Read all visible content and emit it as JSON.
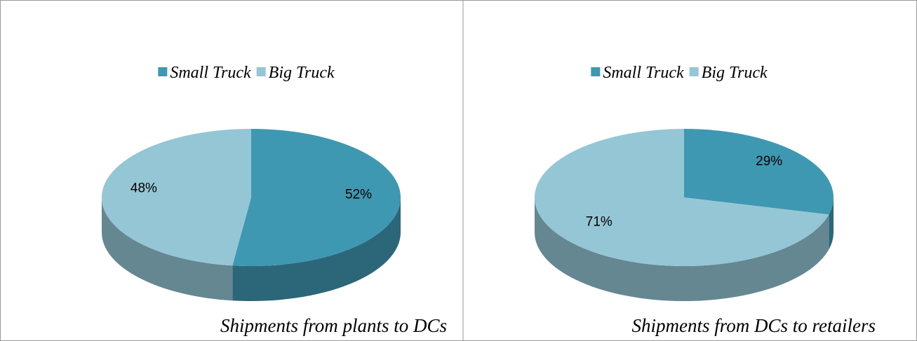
{
  "chart_data": [
    {
      "type": "pie",
      "title": "Shipments from plants to DCs",
      "categories": [
        "Small Truck",
        "Big Truck"
      ],
      "values": [
        52,
        48
      ],
      "value_labels": [
        "52%",
        "48%"
      ],
      "colors": [
        "#3f98b2",
        "#94c6d6"
      ],
      "legend": "top"
    },
    {
      "type": "pie",
      "title": "Shipments from DCs to retailers",
      "categories": [
        "Small Truck",
        "Big Truck"
      ],
      "values": [
        29,
        71
      ],
      "value_labels": [
        "29%",
        "71%"
      ],
      "colors": [
        "#3f98b2",
        "#94c6d6"
      ],
      "legend": "top"
    }
  ]
}
